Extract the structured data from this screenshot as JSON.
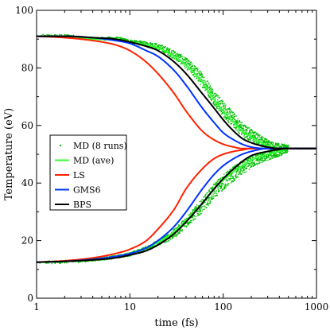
{
  "chart_data": {
    "type": "line",
    "xlabel": "time (fs)",
    "ylabel": "Temperature (eV)",
    "xscale": "log",
    "xlim": [
      1,
      1000
    ],
    "ylim": [
      0,
      100
    ],
    "x_ticks": [
      1,
      10,
      100,
      1000
    ],
    "x_tick_labels": [
      "1",
      "10",
      "100",
      "1000"
    ],
    "y_ticks": [
      0,
      20,
      40,
      60,
      80,
      100
    ],
    "y_tick_labels": [
      "0",
      "20",
      "40",
      "60",
      "80",
      "100"
    ],
    "grid": false,
    "legend_position": "left-middle",
    "series": [
      {
        "name": "MD (8 runs)",
        "style": "scatter",
        "color": "#00c000",
        "hot_x": [
          1,
          2,
          4,
          7,
          10,
          15,
          20,
          30,
          40,
          60,
          80,
          100,
          130,
          160,
          200,
          300,
          400,
          500
        ],
        "hot_y": [
          91,
          91,
          90,
          90,
          89,
          88,
          87,
          84,
          81,
          75,
          69,
          65,
          61,
          58,
          56,
          53,
          52,
          52
        ],
        "cold_x": [
          1,
          2,
          4,
          7,
          10,
          15,
          20,
          30,
          40,
          60,
          80,
          100,
          130,
          160,
          200,
          300,
          400,
          500
        ],
        "cold_y": [
          12.5,
          12.8,
          13.5,
          14.5,
          15.5,
          17.5,
          19.5,
          23,
          27,
          33,
          38,
          41,
          44,
          46,
          48,
          50,
          51,
          52
        ]
      },
      {
        "name": "MD (ave)",
        "style": "line",
        "color": "#33ff33",
        "hot_x": [
          1,
          2,
          4,
          7,
          10,
          15,
          20,
          30,
          40,
          60,
          80,
          100,
          130,
          160,
          200,
          300,
          400,
          500
        ],
        "hot_y": [
          91,
          91,
          90,
          90,
          89,
          88,
          87,
          84,
          81,
          75,
          69,
          65,
          61,
          58,
          56,
          53,
          52,
          52
        ],
        "cold_x": [
          1,
          2,
          4,
          7,
          10,
          15,
          20,
          30,
          40,
          60,
          80,
          100,
          130,
          160,
          200,
          300,
          400,
          500
        ],
        "cold_y": [
          12.5,
          12.8,
          13.5,
          14.5,
          15.5,
          17.5,
          19.5,
          23,
          27,
          33,
          38,
          41,
          44,
          46,
          48,
          50,
          51,
          52
        ]
      },
      {
        "name": "LS",
        "style": "line",
        "color": "#ff2200",
        "hot_x": [
          1,
          2,
          4,
          7,
          10,
          15,
          20,
          30,
          40,
          60,
          80,
          100,
          130,
          160,
          200,
          300,
          500,
          1000
        ],
        "hot_y": [
          91,
          90.5,
          89.5,
          88,
          86,
          82,
          78,
          71,
          65,
          58,
          55,
          53.5,
          52.5,
          52,
          52,
          52,
          52,
          52
        ],
        "cold_x": [
          1,
          2,
          4,
          7,
          10,
          15,
          20,
          30,
          40,
          60,
          80,
          100,
          130,
          160,
          200,
          300,
          500,
          1000
        ],
        "cold_y": [
          12.5,
          13,
          14,
          15.5,
          17,
          20,
          24,
          31,
          38,
          45,
          48.5,
          50,
          51,
          51.5,
          52,
          52,
          52,
          52
        ]
      },
      {
        "name": "GMS6",
        "style": "line",
        "color": "#0033ff",
        "hot_x": [
          1,
          2,
          4,
          7,
          10,
          15,
          20,
          30,
          40,
          60,
          80,
          100,
          130,
          160,
          200,
          300,
          500,
          1000
        ],
        "hot_y": [
          91,
          91,
          90.5,
          89.5,
          88.5,
          86,
          84,
          79,
          74,
          66,
          61,
          57.5,
          55,
          53.5,
          52.5,
          52,
          52,
          52
        ],
        "cold_x": [
          1,
          2,
          4,
          7,
          10,
          15,
          20,
          30,
          40,
          60,
          80,
          100,
          130,
          160,
          200,
          300,
          500,
          1000
        ],
        "cold_y": [
          12.5,
          12.8,
          13.5,
          14.5,
          15.5,
          17.5,
          20,
          25,
          30,
          38,
          43,
          46,
          48.5,
          50,
          51,
          52,
          52,
          52
        ]
      },
      {
        "name": "BPS",
        "style": "line",
        "color": "#000000",
        "hot_x": [
          1,
          2,
          4,
          7,
          10,
          15,
          20,
          30,
          40,
          60,
          80,
          100,
          130,
          160,
          200,
          300,
          400,
          500,
          1000
        ],
        "hot_y": [
          91,
          91,
          90.5,
          90,
          89,
          87.5,
          86,
          82,
          78,
          71,
          66,
          62,
          58,
          55.5,
          54,
          52.5,
          52,
          52,
          52
        ],
        "cold_x": [
          1,
          2,
          4,
          7,
          10,
          15,
          20,
          30,
          40,
          60,
          80,
          100,
          130,
          160,
          200,
          300,
          400,
          500,
          1000
        ],
        "cold_y": [
          12.5,
          12.8,
          13.3,
          14,
          15,
          16.5,
          18.5,
          22.5,
          26.5,
          33,
          38,
          41.5,
          45,
          47.5,
          49.5,
          51,
          51.7,
          52,
          52
        ]
      }
    ]
  }
}
